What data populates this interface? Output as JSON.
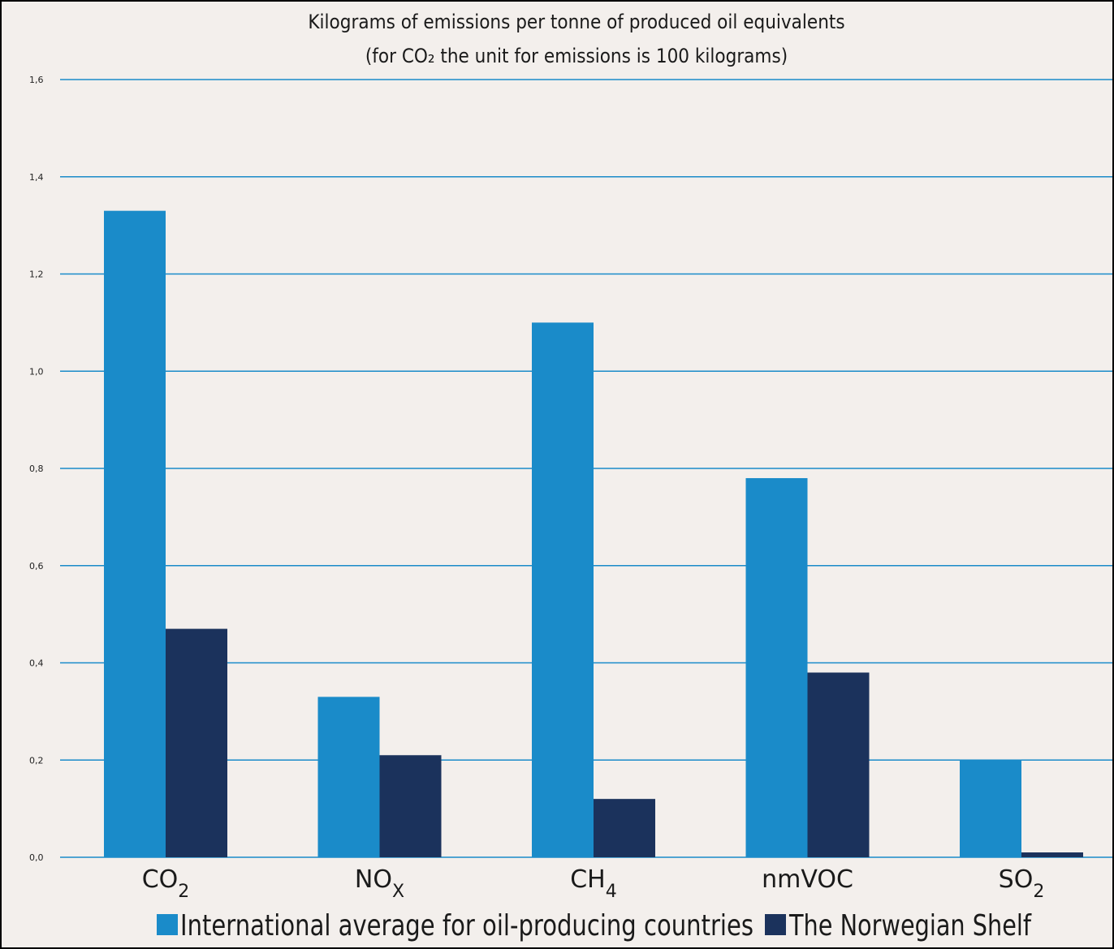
{
  "chart_data": {
    "type": "bar",
    "title_line1": "Kilograms of emissions per tonne of produced oil equivalents",
    "title_line2": "(for CO₂ the unit for emissions is 100 kilograms)",
    "xlabel": "",
    "ylabel": "",
    "categories": [
      {
        "main": "CO",
        "sub": "2"
      },
      {
        "main": "NO",
        "sub": "X"
      },
      {
        "main": "CH",
        "sub": "4"
      },
      {
        "main": "nmVOC",
        "sub": ""
      },
      {
        "main": "SO",
        "sub": "2"
      }
    ],
    "series": [
      {
        "name": "International average for oil-producing countries",
        "color": "#1a8bc9",
        "values": [
          1.33,
          0.33,
          1.1,
          0.78,
          0.2
        ]
      },
      {
        "name": "The Norwegian Shelf",
        "color": "#1b325c",
        "values": [
          0.47,
          0.21,
          0.12,
          0.38,
          0.01
        ]
      }
    ],
    "ylim": [
      0,
      1.6
    ],
    "yticks": [
      "0,0",
      "0,2",
      "0,4",
      "0,6",
      "0,8",
      "1,0",
      "1,2",
      "1,4",
      "1,6"
    ],
    "grid": true,
    "grid_color": "#1a8bc9",
    "legend_position": "bottom"
  }
}
